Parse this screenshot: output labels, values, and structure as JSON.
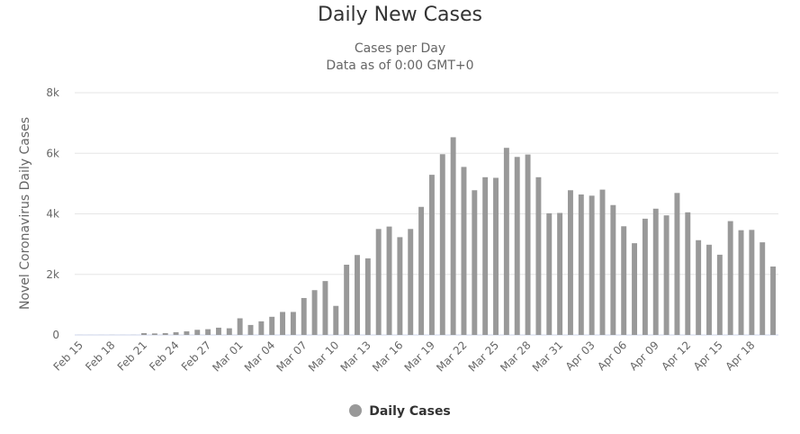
{
  "chart_data": {
    "type": "bar",
    "title": "Daily New Cases",
    "subtitle": [
      "Cases per Day",
      "Data as of 0:00 GMT+0"
    ],
    "ylabel": "Novel Coronavirus Daily Cases",
    "ylim": [
      0,
      8000
    ],
    "yticks": [
      0,
      2000,
      4000,
      6000,
      8000
    ],
    "ytick_labels": [
      "0",
      "2k",
      "4k",
      "6k",
      "8k"
    ],
    "xtick_labels": [
      "Feb 15",
      "Feb 18",
      "Feb 21",
      "Feb 24",
      "Feb 27",
      "Mar 01",
      "Mar 04",
      "Mar 07",
      "Mar 10",
      "Mar 13",
      "Mar 16",
      "Mar 19",
      "Mar 22",
      "Mar 25",
      "Mar 28",
      "Mar 31",
      "Apr 03",
      "Apr 06",
      "Apr 09",
      "Apr 12",
      "Apr 15",
      "Apr 18"
    ],
    "xtick_every": 3,
    "categories": [
      "Feb 15",
      "Feb 16",
      "Feb 17",
      "Feb 18",
      "Feb 19",
      "Feb 20",
      "Feb 21",
      "Feb 22",
      "Feb 23",
      "Feb 24",
      "Feb 25",
      "Feb 26",
      "Feb 27",
      "Feb 28",
      "Feb 29",
      "Mar 01",
      "Mar 02",
      "Mar 03",
      "Mar 04",
      "Mar 05",
      "Mar 06",
      "Mar 07",
      "Mar 08",
      "Mar 09",
      "Mar 10",
      "Mar 11",
      "Mar 12",
      "Mar 13",
      "Mar 14",
      "Mar 15",
      "Mar 16",
      "Mar 17",
      "Mar 18",
      "Mar 19",
      "Mar 20",
      "Mar 21",
      "Mar 22",
      "Mar 23",
      "Mar 24",
      "Mar 25",
      "Mar 26",
      "Mar 27",
      "Mar 28",
      "Mar 29",
      "Mar 30",
      "Mar 31",
      "Apr 01",
      "Apr 02",
      "Apr 03",
      "Apr 04",
      "Apr 05",
      "Apr 06",
      "Apr 07",
      "Apr 08",
      "Apr 09",
      "Apr 10",
      "Apr 11",
      "Apr 12",
      "Apr 13",
      "Apr 14",
      "Apr 15",
      "Apr 16",
      "Apr 17",
      "Apr 18",
      "Apr 19",
      "Apr 20"
    ],
    "series": [
      {
        "name": "Daily Cases",
        "color": "#999999",
        "values": [
          2,
          1,
          2,
          3,
          2,
          3,
          60,
          50,
          60,
          90,
          120,
          170,
          190,
          240,
          220,
          550,
          330,
          450,
          600,
          760,
          760,
          1220,
          1480,
          1780,
          960,
          2320,
          2640,
          2530,
          3500,
          3580,
          3230,
          3500,
          4230,
          5290,
          5970,
          6530,
          5550,
          4780,
          5210,
          5190,
          6180,
          5880,
          5960,
          5210,
          4020,
          4030,
          4780,
          4640,
          4600,
          4800,
          4290,
          3590,
          3030,
          3840,
          4170,
          3950,
          4690,
          4050,
          3130,
          2980,
          2650,
          3760,
          3460,
          3470,
          3060,
          2260
        ]
      }
    ],
    "legend": {
      "position": "bottom-center",
      "label": "Daily Cases",
      "color": "#999999"
    },
    "grid": true
  }
}
